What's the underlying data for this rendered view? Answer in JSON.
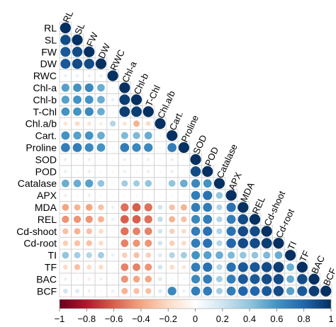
{
  "chart_data": {
    "type": "heatmap",
    "variables": [
      "RL",
      "SL",
      "FW",
      "DW",
      "RWC",
      "Chl-a",
      "Chl-b",
      "T-Chl",
      "Chl.a/b",
      "Cart.",
      "Proline",
      "SOD",
      "POD",
      "Catalase",
      "APX",
      "MDA",
      "REL",
      "Cd-shoot",
      "Cd-root",
      "TI",
      "TF",
      "BAC",
      "BCF"
    ],
    "lower_triangle": [
      [
        1
      ],
      [
        0.9,
        1
      ],
      [
        0.85,
        0.9,
        1
      ],
      [
        0.85,
        0.9,
        0.9,
        1
      ],
      [
        0.1,
        0.1,
        0.1,
        0.1,
        1
      ],
      [
        0.55,
        0.6,
        0.65,
        0.5,
        0.05,
        1
      ],
      [
        0.55,
        0.6,
        0.6,
        0.5,
        0.1,
        0.95,
        1
      ],
      [
        0.6,
        0.6,
        0.65,
        0.5,
        0.05,
        0.95,
        0.95,
        1
      ],
      [
        -0.15,
        -0.2,
        -0.15,
        -0.1,
        0.3,
        -0.15,
        -0.35,
        -0.2,
        1
      ],
      [
        0.6,
        0.55,
        0.6,
        0.5,
        0.05,
        0.45,
        0.45,
        0.5,
        0.05,
        1
      ],
      [
        0.7,
        0.7,
        0.65,
        0.6,
        0.05,
        0.7,
        0.65,
        0.65,
        0.05,
        0.7,
        1
      ],
      [
        0.1,
        0.05,
        0.1,
        0.05,
        -0.05,
        0.1,
        0.05,
        0.1,
        0.05,
        0.1,
        0.05,
        1
      ],
      [
        0.1,
        0.05,
        0.1,
        0.05,
        -0.05,
        0.1,
        0.05,
        0.1,
        0.05,
        0.1,
        0.05,
        0.9,
        1
      ],
      [
        0.5,
        0.5,
        0.55,
        0.4,
        0.05,
        0.35,
        0.35,
        0.4,
        0.05,
        0.4,
        0.5,
        0.65,
        0.6,
        1
      ],
      [
        0.1,
        0.05,
        0.1,
        -0.05,
        -0.05,
        0.05,
        0.05,
        0.05,
        0.05,
        0.05,
        0.05,
        0.7,
        0.75,
        0.4,
        1
      ],
      [
        -0.4,
        -0.35,
        -0.4,
        -0.3,
        0.1,
        -0.55,
        -0.6,
        -0.55,
        0.2,
        -0.3,
        -0.35,
        0.7,
        0.7,
        0.3,
        0.75,
        1
      ],
      [
        -0.45,
        -0.45,
        -0.45,
        -0.35,
        0.1,
        -0.6,
        -0.6,
        -0.55,
        0.25,
        -0.35,
        -0.3,
        0.65,
        0.7,
        0.3,
        0.7,
        0.9,
        1
      ],
      [
        -0.3,
        -0.35,
        -0.3,
        -0.2,
        0.05,
        -0.55,
        -0.5,
        -0.5,
        0.2,
        -0.25,
        -0.2,
        0.7,
        0.75,
        0.3,
        0.75,
        0.9,
        0.9,
        1
      ],
      [
        -0.25,
        -0.3,
        -0.3,
        -0.2,
        0.05,
        -0.5,
        -0.45,
        -0.45,
        0.2,
        -0.25,
        -0.2,
        0.7,
        0.75,
        0.3,
        0.8,
        0.9,
        0.9,
        0.95,
        1
      ],
      [
        0.4,
        0.35,
        0.3,
        0.35,
        0.1,
        -0.25,
        -0.3,
        -0.25,
        0.15,
        0.3,
        0.35,
        0.6,
        0.55,
        0.5,
        0.45,
        0.4,
        0.4,
        0.45,
        0.5,
        1
      ],
      [
        -0.2,
        -0.3,
        -0.2,
        -0.2,
        0.05,
        -0.5,
        -0.5,
        -0.45,
        0.2,
        -0.2,
        -0.15,
        0.7,
        0.75,
        0.3,
        0.75,
        0.85,
        0.85,
        0.9,
        0.95,
        0.5,
        1
      ],
      [
        0.1,
        0.05,
        -0.1,
        0.1,
        -0.05,
        -0.45,
        -0.4,
        -0.4,
        0.15,
        0.05,
        0.05,
        0.65,
        0.7,
        0.35,
        0.7,
        0.85,
        0.85,
        0.9,
        0.9,
        0.5,
        0.9,
        1
      ],
      [
        0.2,
        0.15,
        0.1,
        0.05,
        0.1,
        -0.35,
        -0.3,
        -0.3,
        0.15,
        0.65,
        0.1,
        0.7,
        0.7,
        0.35,
        0.7,
        0.8,
        0.8,
        0.85,
        0.9,
        0.55,
        0.85,
        0.95,
        1
      ]
    ],
    "colorbar": {
      "ticks": [
        "−1",
        "−0.8",
        "−0.6",
        "−0.4",
        "−0.2",
        "0",
        "0.2",
        "0.4",
        "0.6",
        "0.8",
        "1"
      ],
      "range": [
        -1,
        1
      ],
      "colors": [
        "#67001f",
        "#b2182b",
        "#d6604d",
        "#f4a582",
        "#fddbc7",
        "#ffffff",
        "#d1e5f0",
        "#92c5de",
        "#4393c3",
        "#2166ac",
        "#053061"
      ]
    },
    "grid": true
  }
}
